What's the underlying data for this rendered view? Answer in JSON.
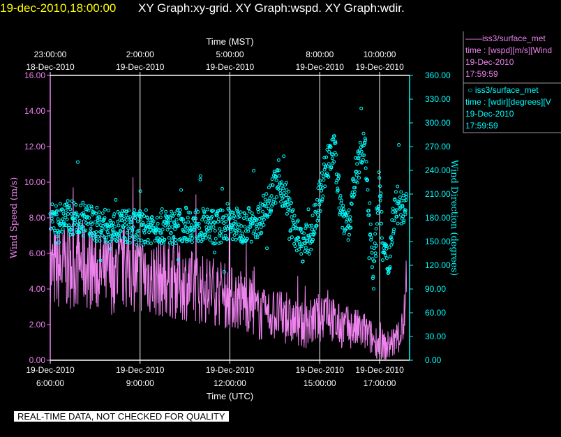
{
  "header": {
    "datetime": "19-dec-2010,18:00:00",
    "graphs": "XY Graph:xy-grid.  XY Graph:wspd.  XY Graph:wdir."
  },
  "colors": {
    "speed": "#ee82ee",
    "direction": "#00ffff",
    "header_date": "#ffff00",
    "axes": "#ffffff"
  },
  "chart_data": {
    "type": "scatter",
    "left_axis": {
      "label": "Wind Speed (m/s)",
      "range": [
        0,
        16
      ],
      "ticks": [
        "0.00",
        "2.00",
        "4.00",
        "6.00",
        "8.00",
        "10.00",
        "12.00",
        "14.00",
        "16.00"
      ]
    },
    "right_axis": {
      "label": "Wind Direction (degrees)",
      "range": [
        0,
        360
      ],
      "ticks": [
        "0.00",
        "30.00",
        "60.00",
        "90.00",
        "120.00",
        "150.00",
        "180.00",
        "210.00",
        "240.00",
        "270.00",
        "300.00",
        "330.00",
        "360.00"
      ]
    },
    "bottom_axis": {
      "label": "Time (UTC)",
      "range": [
        6.0,
        18.0
      ],
      "ticks": [
        {
          "hour": 6,
          "time": "6:00:00",
          "date": "19-Dec-2010"
        },
        {
          "hour": 9,
          "time": "9:00:00",
          "date": "19-Dec-2010"
        },
        {
          "hour": 12,
          "time": "12:00:00",
          "date": "19-Dec-2010"
        },
        {
          "hour": 15,
          "time": "15:00:00",
          "date": "19-Dec-2010"
        },
        {
          "hour": 17,
          "time": "17:00:00",
          "date": "19-Dec-2010"
        }
      ]
    },
    "top_axis": {
      "label": "Time (MST)",
      "ticks": [
        {
          "hour": 6,
          "time": "23:00:00",
          "date": "18-Dec-2010"
        },
        {
          "hour": 9,
          "time": "2:00:00",
          "date": "19-Dec-2010"
        },
        {
          "hour": 12,
          "time": "5:00:00",
          "date": "19-Dec-2010"
        },
        {
          "hour": 15,
          "time": "8:00:00",
          "date": "19-Dec-2010"
        },
        {
          "hour": 17,
          "time": "10:00:00",
          "date": "19-Dec-2010"
        }
      ]
    },
    "grid_hours": [
      9,
      12,
      15,
      17
    ],
    "series": [
      {
        "name": "iss3/surface_met",
        "variable": "time : [wspd][m/s][Wind",
        "timestamp_date": "19-Dec-2010",
        "timestamp_time": "17:59:59",
        "axis": "left",
        "style": "line",
        "x": [
          6.0,
          6.5,
          7.0,
          7.5,
          8.0,
          8.5,
          9.0,
          9.5,
          10.0,
          10.5,
          11.0,
          11.5,
          12.0,
          12.5,
          13.0,
          13.5,
          14.0,
          14.5,
          15.0,
          15.25,
          15.5,
          16.0,
          16.5,
          16.8,
          17.0,
          17.2,
          17.5,
          17.75,
          17.9
        ],
        "y": [
          5.0,
          5.2,
          5.5,
          5.0,
          4.8,
          5.2,
          4.9,
          4.6,
          4.5,
          4.3,
          4.0,
          3.9,
          3.5,
          3.4,
          2.5,
          2.6,
          2.2,
          1.9,
          2.4,
          3.2,
          2.0,
          1.8,
          1.6,
          1.1,
          1.0,
          0.7,
          1.1,
          1.6,
          3.5
        ]
      },
      {
        "name": "iss3/surface_met",
        "variable": "time : [wdir][degrees][V",
        "timestamp_date": "19-Dec-2010",
        "timestamp_time": "17:59:59",
        "axis": "right",
        "style": "points",
        "x": [
          6.0,
          6.5,
          7.0,
          7.5,
          8.0,
          8.5,
          9.0,
          9.5,
          10.0,
          10.5,
          11.0,
          11.5,
          12.0,
          12.5,
          13.0,
          13.3,
          13.6,
          13.9,
          14.1,
          14.4,
          14.7,
          15.0,
          15.2,
          15.5,
          15.7,
          16.0,
          16.2,
          16.5,
          16.8,
          17.0,
          17.1,
          17.3,
          17.5,
          17.75,
          17.9
        ],
        "y": [
          175,
          180,
          180,
          172,
          168,
          170,
          167,
          170,
          168,
          172,
          170,
          168,
          172,
          170,
          178,
          205,
          225,
          205,
          170,
          145,
          155,
          205,
          245,
          265,
          190,
          170,
          240,
          270,
          110,
          230,
          140,
          120,
          195,
          190,
          205
        ]
      }
    ],
    "annotation": "REAL-TIME DATA, NOT CHECKED FOR QUALITY"
  }
}
